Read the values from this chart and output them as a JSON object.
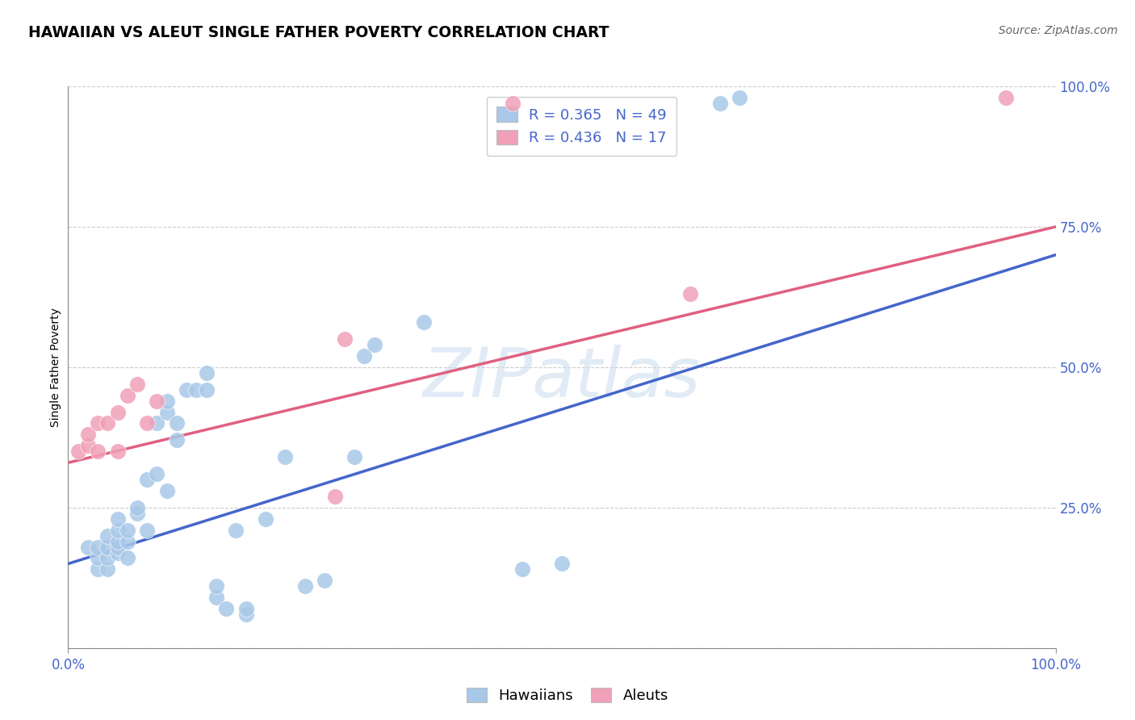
{
  "title": "HAWAIIAN VS ALEUT SINGLE FATHER POVERTY CORRELATION CHART",
  "source": "Source: ZipAtlas.com",
  "ylabel": "Single Father Poverty",
  "hawaiian_R": 0.365,
  "hawaiian_N": 49,
  "aleut_R": 0.436,
  "aleut_N": 17,
  "hawaiian_color": "#a8c8e8",
  "aleut_color": "#f0a0b8",
  "hawaiian_line_color": "#4466cc",
  "aleut_line_color": "#e06080",
  "dashed_color": "#a0b8d0",
  "tick_color": "#4466cc",
  "watermark_color": "#c8dcf0",
  "hawaiian_x": [
    2,
    3,
    3,
    3,
    4,
    4,
    4,
    4,
    5,
    5,
    5,
    5,
    5,
    6,
    6,
    6,
    7,
    7,
    8,
    8,
    9,
    9,
    10,
    10,
    10,
    11,
    11,
    12,
    13,
    14,
    14,
    15,
    15,
    16,
    17,
    18,
    18,
    20,
    22,
    24,
    26,
    29,
    30,
    31,
    36,
    46,
    50,
    66,
    68
  ],
  "hawaiian_y": [
    18,
    14,
    16,
    18,
    14,
    16,
    18,
    20,
    17,
    18,
    19,
    21,
    23,
    16,
    19,
    21,
    24,
    25,
    21,
    30,
    31,
    40,
    28,
    42,
    44,
    37,
    40,
    46,
    46,
    46,
    49,
    9,
    11,
    7,
    21,
    6,
    7,
    23,
    34,
    11,
    12,
    34,
    52,
    54,
    58,
    14,
    15,
    97,
    98
  ],
  "aleut_x": [
    1,
    2,
    2,
    3,
    3,
    4,
    5,
    5,
    6,
    7,
    8,
    9,
    27,
    28,
    45,
    63,
    95
  ],
  "aleut_y": [
    35,
    36,
    38,
    35,
    40,
    40,
    35,
    42,
    45,
    47,
    40,
    44,
    27,
    55,
    97,
    63,
    98
  ],
  "xlim": [
    0,
    100
  ],
  "ylim": [
    0,
    100
  ],
  "grid_y": [
    0,
    25,
    50,
    75,
    100
  ],
  "hawaiian_intercept": 15.0,
  "hawaiian_slope": 0.55,
  "aleut_intercept": 33.0,
  "aleut_slope": 0.42
}
